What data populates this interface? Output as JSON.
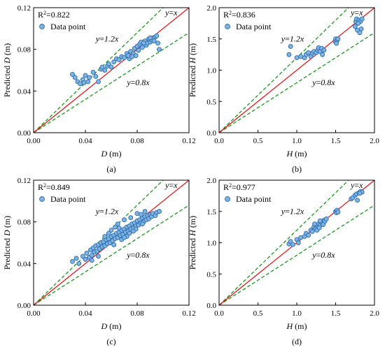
{
  "chart_data": [
    {
      "panel": "(a)",
      "type": "scatter",
      "xlabel_var": "D",
      "xlabel_unit": "(m)",
      "ylabel_prefix": "Predicted ",
      "ylabel_var": "D",
      "ylabel_unit": "(m)",
      "xlim": [
        0,
        0.12
      ],
      "ylim": [
        0,
        0.12
      ],
      "xticks": [
        "0.00",
        "0.04",
        "0.08",
        "0.12"
      ],
      "yticks": [
        "0.00",
        "0.04",
        "0.08",
        "0.12"
      ],
      "r2_label": "R",
      "r2_sup": "2",
      "r2_value": "=0.822",
      "legend": "Data point",
      "lines": {
        "identity": "y=x",
        "upper": "y=1.2x",
        "lower": "y=0.8x"
      },
      "points": [
        [
          0.03,
          0.056
        ],
        [
          0.032,
          0.053
        ],
        [
          0.034,
          0.049
        ],
        [
          0.036,
          0.047
        ],
        [
          0.038,
          0.051
        ],
        [
          0.039,
          0.048
        ],
        [
          0.04,
          0.055
        ],
        [
          0.042,
          0.049
        ],
        [
          0.043,
          0.053
        ],
        [
          0.046,
          0.058
        ],
        [
          0.048,
          0.054
        ],
        [
          0.05,
          0.049
        ],
        [
          0.052,
          0.061
        ],
        [
          0.053,
          0.063
        ],
        [
          0.055,
          0.06
        ],
        [
          0.057,
          0.064
        ],
        [
          0.058,
          0.066
        ],
        [
          0.06,
          0.063
        ],
        [
          0.062,
          0.068
        ],
        [
          0.064,
          0.071
        ],
        [
          0.066,
          0.07
        ],
        [
          0.068,
          0.073
        ],
        [
          0.07,
          0.072
        ],
        [
          0.072,
          0.076
        ],
        [
          0.074,
          0.071
        ],
        [
          0.075,
          0.078
        ],
        [
          0.077,
          0.076
        ],
        [
          0.078,
          0.081
        ],
        [
          0.079,
          0.074
        ],
        [
          0.08,
          0.083
        ],
        [
          0.081,
          0.079
        ],
        [
          0.082,
          0.085
        ],
        [
          0.083,
          0.087
        ],
        [
          0.084,
          0.082
        ],
        [
          0.086,
          0.088
        ],
        [
          0.087,
          0.084
        ],
        [
          0.088,
          0.086
        ],
        [
          0.089,
          0.09
        ],
        [
          0.09,
          0.087
        ],
        [
          0.091,
          0.089
        ],
        [
          0.092,
          0.091
        ],
        [
          0.093,
          0.088
        ],
        [
          0.094,
          0.092
        ],
        [
          0.096,
          0.086
        ],
        [
          0.097,
          0.08
        ],
        [
          0.095,
          0.093
        ],
        [
          0.09,
          0.091
        ],
        [
          0.085,
          0.086
        ],
        [
          0.076,
          0.073
        ],
        [
          0.073,
          0.074
        ]
      ]
    },
    {
      "panel": "(b)",
      "type": "scatter",
      "xlabel_var": "H",
      "xlabel_unit": "(m)",
      "ylabel_prefix": "Predicted ",
      "ylabel_var": "H",
      "ylabel_unit": "(m)",
      "xlim": [
        0,
        2.0
      ],
      "ylim": [
        0,
        2.0
      ],
      "xticks": [
        "0.0",
        "0.5",
        "1.0",
        "1.5",
        "2.0"
      ],
      "yticks": [
        "0.0",
        "0.5",
        "1.0",
        "1.5",
        "2.0"
      ],
      "r2_label": "R",
      "r2_sup": "2",
      "r2_value": "=0.836",
      "legend": "Data point",
      "lines": {
        "identity": "y=x",
        "upper": "y=1.2x",
        "lower": "y=0.8x"
      },
      "points": [
        [
          0.9,
          1.25
        ],
        [
          0.92,
          1.38
        ],
        [
          1.0,
          1.2
        ],
        [
          1.05,
          1.22
        ],
        [
          1.1,
          1.2
        ],
        [
          1.12,
          1.25
        ],
        [
          1.15,
          1.28
        ],
        [
          1.18,
          1.22
        ],
        [
          1.2,
          1.27
        ],
        [
          1.22,
          1.3
        ],
        [
          1.25,
          1.28
        ],
        [
          1.27,
          1.32
        ],
        [
          1.28,
          1.36
        ],
        [
          1.3,
          1.3
        ],
        [
          1.32,
          1.35
        ],
        [
          1.33,
          1.25
        ],
        [
          1.35,
          1.32
        ],
        [
          1.5,
          1.5
        ],
        [
          1.5,
          1.45
        ],
        [
          1.52,
          1.48
        ],
        [
          1.51,
          1.43
        ],
        [
          1.53,
          1.5
        ],
        [
          1.75,
          1.7
        ],
        [
          1.76,
          1.78
        ],
        [
          1.77,
          1.82
        ],
        [
          1.78,
          1.64
        ],
        [
          1.8,
          1.8
        ],
        [
          1.82,
          1.78
        ],
        [
          1.83,
          1.66
        ],
        [
          1.84,
          1.82
        ],
        [
          1.81,
          1.6
        ],
        [
          1.79,
          1.75
        ]
      ]
    },
    {
      "panel": "(c)",
      "type": "scatter",
      "xlabel_var": "D",
      "xlabel_unit": "(m)",
      "ylabel_prefix": "Predicted ",
      "ylabel_var": "D",
      "ylabel_unit": "(m)",
      "xlim": [
        0,
        0.12
      ],
      "ylim": [
        0,
        0.12
      ],
      "xticks": [
        "0.00",
        "0.04",
        "0.08",
        "0.12"
      ],
      "yticks": [
        "0.00",
        "0.04",
        "0.08",
        "0.12"
      ],
      "r2_label": "R",
      "r2_sup": "2",
      "r2_value": "=0.849",
      "legend": "Data point",
      "lines": {
        "identity": "y=x",
        "upper": "y=1.2x",
        "lower": "y=0.8x"
      },
      "points": [
        [
          0.03,
          0.042
        ],
        [
          0.033,
          0.045
        ],
        [
          0.035,
          0.04
        ],
        [
          0.038,
          0.047
        ],
        [
          0.04,
          0.044
        ],
        [
          0.041,
          0.05
        ],
        [
          0.043,
          0.046
        ],
        [
          0.044,
          0.053
        ],
        [
          0.045,
          0.048
        ],
        [
          0.046,
          0.055
        ],
        [
          0.047,
          0.051
        ],
        [
          0.048,
          0.057
        ],
        [
          0.049,
          0.052
        ],
        [
          0.05,
          0.058
        ],
        [
          0.051,
          0.054
        ],
        [
          0.052,
          0.06
        ],
        [
          0.053,
          0.056
        ],
        [
          0.054,
          0.061
        ],
        [
          0.055,
          0.057
        ],
        [
          0.056,
          0.063
        ],
        [
          0.057,
          0.059
        ],
        [
          0.058,
          0.064
        ],
        [
          0.059,
          0.06
        ],
        [
          0.06,
          0.066
        ],
        [
          0.061,
          0.062
        ],
        [
          0.062,
          0.067
        ],
        [
          0.063,
          0.064
        ],
        [
          0.064,
          0.069
        ],
        [
          0.065,
          0.065
        ],
        [
          0.066,
          0.07
        ],
        [
          0.067,
          0.067
        ],
        [
          0.068,
          0.072
        ],
        [
          0.069,
          0.068
        ],
        [
          0.07,
          0.073
        ],
        [
          0.071,
          0.07
        ],
        [
          0.072,
          0.075
        ],
        [
          0.073,
          0.071
        ],
        [
          0.074,
          0.076
        ],
        [
          0.075,
          0.073
        ],
        [
          0.076,
          0.078
        ],
        [
          0.077,
          0.074
        ],
        [
          0.078,
          0.079
        ],
        [
          0.079,
          0.076
        ],
        [
          0.08,
          0.081
        ],
        [
          0.081,
          0.077
        ],
        [
          0.082,
          0.082
        ],
        [
          0.083,
          0.079
        ],
        [
          0.084,
          0.084
        ],
        [
          0.085,
          0.08
        ],
        [
          0.086,
          0.085
        ],
        [
          0.087,
          0.082
        ],
        [
          0.088,
          0.086
        ],
        [
          0.089,
          0.083
        ],
        [
          0.09,
          0.087
        ],
        [
          0.091,
          0.085
        ],
        [
          0.092,
          0.088
        ],
        [
          0.094,
          0.086
        ],
        [
          0.095,
          0.089
        ],
        [
          0.097,
          0.09
        ],
        [
          0.06,
          0.072
        ],
        [
          0.065,
          0.078
        ],
        [
          0.07,
          0.082
        ],
        [
          0.075,
          0.084
        ],
        [
          0.08,
          0.088
        ],
        [
          0.062,
          0.058
        ],
        [
          0.068,
          0.063
        ],
        [
          0.074,
          0.069
        ],
        [
          0.079,
          0.073
        ],
        [
          0.084,
          0.078
        ],
        [
          0.055,
          0.066
        ],
        [
          0.058,
          0.069
        ],
        [
          0.063,
          0.075
        ],
        [
          0.072,
          0.066
        ],
        [
          0.077,
          0.071
        ],
        [
          0.045,
          0.043
        ],
        [
          0.05,
          0.047
        ],
        [
          0.086,
          0.09
        ],
        [
          0.083,
          0.087
        ],
        [
          0.07,
          0.065
        ],
        [
          0.066,
          0.074
        ]
      ]
    },
    {
      "panel": "(d)",
      "type": "scatter",
      "xlabel_var": "H",
      "xlabel_unit": "(m)",
      "ylabel_prefix": "Predicted ",
      "ylabel_var": "H",
      "ylabel_unit": "(m)",
      "xlim": [
        0,
        2.0
      ],
      "ylim": [
        0,
        2.0
      ],
      "xticks": [
        "0.0",
        "0.5",
        "1.0",
        "1.5",
        "2.0"
      ],
      "yticks": [
        "0.0",
        "0.5",
        "1.0",
        "1.5",
        "2.0"
      ],
      "r2_label": "R",
      "r2_sup": "2",
      "r2_value": "=0.977",
      "legend": "Data point",
      "lines": {
        "identity": "y=x",
        "upper": "y=1.2x",
        "lower": "y=0.8x"
      },
      "points": [
        [
          0.9,
          0.98
        ],
        [
          0.92,
          1.02
        ],
        [
          0.95,
          0.97
        ],
        [
          1.0,
          1.05
        ],
        [
          1.02,
          1.0
        ],
        [
          1.05,
          1.08
        ],
        [
          1.1,
          1.1
        ],
        [
          1.12,
          1.15
        ],
        [
          1.15,
          1.12
        ],
        [
          1.18,
          1.2
        ],
        [
          1.2,
          1.18
        ],
        [
          1.22,
          1.25
        ],
        [
          1.24,
          1.22
        ],
        [
          1.25,
          1.28
        ],
        [
          1.27,
          1.26
        ],
        [
          1.28,
          1.3
        ],
        [
          1.3,
          1.28
        ],
        [
          1.32,
          1.33
        ],
        [
          1.33,
          1.31
        ],
        [
          1.35,
          1.36
        ],
        [
          1.36,
          1.34
        ],
        [
          1.38,
          1.38
        ],
        [
          1.5,
          1.5
        ],
        [
          1.51,
          1.48
        ],
        [
          1.52,
          1.52
        ],
        [
          1.53,
          1.49
        ],
        [
          1.7,
          1.7
        ],
        [
          1.72,
          1.72
        ],
        [
          1.75,
          1.76
        ],
        [
          1.77,
          1.78
        ],
        [
          1.8,
          1.8
        ],
        [
          1.82,
          1.82
        ],
        [
          1.84,
          1.81
        ],
        [
          1.78,
          1.68
        ],
        [
          1.81,
          1.79
        ],
        [
          1.26,
          1.2
        ],
        [
          1.23,
          1.3
        ],
        [
          1.3,
          1.35
        ],
        [
          1.29,
          1.24
        ],
        [
          1.34,
          1.29
        ]
      ]
    }
  ]
}
